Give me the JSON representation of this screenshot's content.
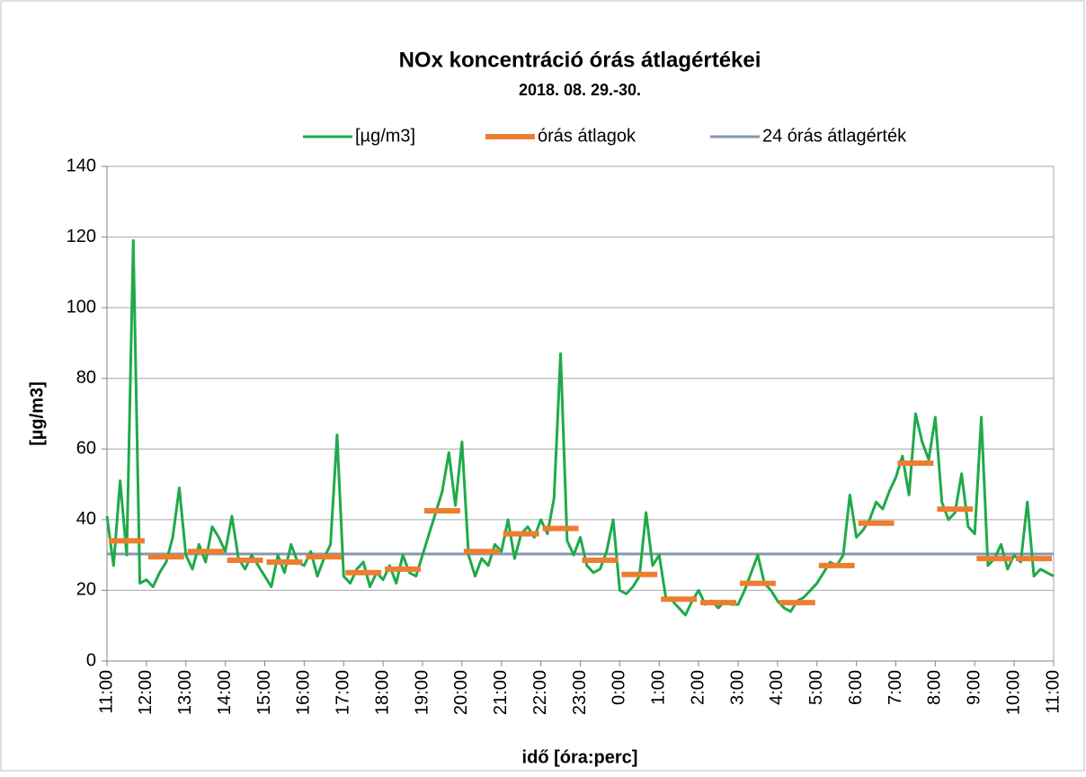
{
  "chart_data": {
    "type": "line",
    "title": "NOx koncentráció órás átlagértékei",
    "subtitle": "2018. 08. 29.-30.",
    "xlabel": "idő [óra:perc]",
    "ylabel": "[µg/m3]",
    "xlim": [
      0,
      1440
    ],
    "xticks": [
      {
        "value": 0,
        "label": "11:00"
      },
      {
        "value": 60,
        "label": "12:00"
      },
      {
        "value": 120,
        "label": "13:00"
      },
      {
        "value": 180,
        "label": "14:00"
      },
      {
        "value": 240,
        "label": "15:00"
      },
      {
        "value": 300,
        "label": "16:00"
      },
      {
        "value": 360,
        "label": "17:00"
      },
      {
        "value": 420,
        "label": "18:00"
      },
      {
        "value": 480,
        "label": "19:00"
      },
      {
        "value": 540,
        "label": "20:00"
      },
      {
        "value": 600,
        "label": "21:00"
      },
      {
        "value": 660,
        "label": "22:00"
      },
      {
        "value": 720,
        "label": "23:00"
      },
      {
        "value": 780,
        "label": "0:00"
      },
      {
        "value": 840,
        "label": "1:00"
      },
      {
        "value": 900,
        "label": "2:00"
      },
      {
        "value": 960,
        "label": "3:00"
      },
      {
        "value": 1020,
        "label": "4:00"
      },
      {
        "value": 1080,
        "label": "5:00"
      },
      {
        "value": 1140,
        "label": "6:00"
      },
      {
        "value": 1200,
        "label": "7:00"
      },
      {
        "value": 1260,
        "label": "8:00"
      },
      {
        "value": 1320,
        "label": "9:00"
      },
      {
        "value": 1380,
        "label": "10:00"
      },
      {
        "value": 1440,
        "label": "11:00"
      }
    ],
    "ylim": [
      0,
      140
    ],
    "yticks": [
      0,
      20,
      40,
      60,
      80,
      100,
      120,
      140
    ],
    "grid": true,
    "legend": "top",
    "series": [
      {
        "name": "[µg/m3]",
        "color": "#1faa4a",
        "style": "line",
        "x": [
          0,
          10,
          20,
          30,
          40,
          50,
          60,
          70,
          80,
          90,
          100,
          110,
          120,
          130,
          140,
          150,
          160,
          170,
          180,
          190,
          200,
          210,
          220,
          230,
          240,
          250,
          260,
          270,
          280,
          290,
          300,
          310,
          320,
          330,
          340,
          350,
          360,
          370,
          380,
          390,
          400,
          410,
          420,
          430,
          440,
          450,
          460,
          470,
          480,
          490,
          500,
          510,
          520,
          530,
          540,
          550,
          560,
          570,
          580,
          590,
          600,
          610,
          620,
          630,
          640,
          650,
          660,
          670,
          680,
          690,
          700,
          710,
          720,
          730,
          740,
          750,
          760,
          770,
          780,
          790,
          800,
          810,
          820,
          830,
          840,
          850,
          860,
          870,
          880,
          890,
          900,
          910,
          920,
          930,
          940,
          950,
          960,
          970,
          980,
          990,
          1000,
          1010,
          1020,
          1030,
          1040,
          1050,
          1060,
          1070,
          1080,
          1090,
          1100,
          1110,
          1120,
          1130,
          1140,
          1150,
          1160,
          1170,
          1180,
          1190,
          1200,
          1210,
          1220,
          1230,
          1240,
          1250,
          1260,
          1270,
          1280,
          1290,
          1300,
          1310,
          1320,
          1330,
          1340,
          1350,
          1360,
          1370,
          1380,
          1390,
          1400,
          1410,
          1420,
          1430,
          1440
        ],
        "values": [
          41,
          27,
          51,
          30,
          119,
          22,
          23,
          21,
          25,
          28,
          35,
          49,
          30,
          26,
          33,
          28,
          38,
          35,
          31,
          41,
          29,
          26,
          30,
          27,
          24,
          21,
          30,
          25,
          33,
          28,
          27,
          31,
          24,
          29,
          33,
          64,
          24,
          22,
          26,
          28,
          21,
          25,
          23,
          27,
          22,
          30,
          25,
          24,
          30,
          36,
          42,
          48,
          59,
          44,
          62,
          30,
          24,
          29,
          27,
          33,
          31,
          40,
          29,
          36,
          38,
          35,
          40,
          36,
          46,
          87,
          34,
          30,
          35,
          27,
          25,
          26,
          31,
          40,
          20,
          19,
          21,
          24,
          42,
          27,
          30,
          18,
          17,
          15,
          13,
          17,
          20,
          16,
          17,
          15,
          17,
          16,
          16,
          20,
          25,
          30,
          22,
          20,
          17,
          15,
          14,
          17,
          18,
          20,
          22,
          25,
          28,
          27,
          30,
          47,
          35,
          37,
          40,
          45,
          43,
          48,
          52,
          58,
          47,
          70,
          62,
          57,
          69,
          45,
          40,
          42,
          53,
          38,
          36,
          69,
          27,
          29,
          33,
          26,
          30,
          28,
          45,
          24,
          26,
          25,
          24
        ]
      },
      {
        "name": "órás átlagok",
        "color": "#ed7d31",
        "style": "hourly",
        "x": [
          0,
          60,
          120,
          180,
          240,
          300,
          360,
          420,
          480,
          540,
          600,
          660,
          720,
          780,
          840,
          900,
          960,
          1020,
          1080,
          1140,
          1200,
          1260,
          1320,
          1380
        ],
        "values": [
          34,
          29.5,
          31,
          28.5,
          28,
          29.5,
          25,
          26,
          42.5,
          31,
          36,
          37.5,
          28.5,
          24.5,
          17.5,
          16.5,
          22,
          16.5,
          27,
          39,
          56,
          43,
          29,
          29
        ]
      },
      {
        "name": "24 órás átlagérték",
        "color": "#8497b0",
        "style": "line",
        "x": [
          0,
          1440
        ],
        "values": [
          30.3,
          30.3
        ]
      }
    ]
  }
}
